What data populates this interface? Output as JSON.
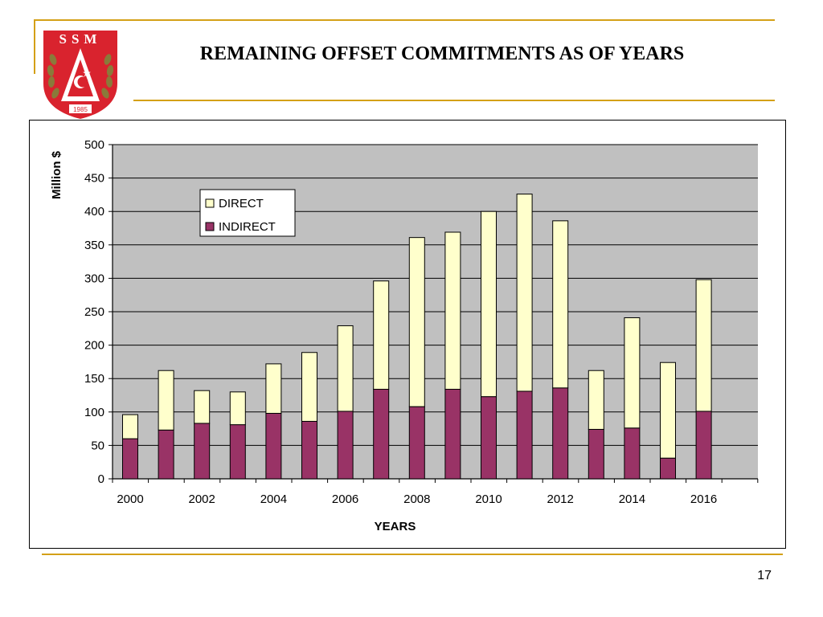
{
  "slide": {
    "title": "REMAINING OFFSET COMMITMENTS AS OF YEARS",
    "page_number": "17"
  },
  "logo": {
    "text": "SSM",
    "year": "1985",
    "colors": {
      "red": "#d9232e",
      "gold": "#8a7a3a",
      "white": "#ffffff"
    }
  },
  "colors": {
    "accent_rule": "#d4a017",
    "plot_background": "#c0c0c0",
    "direct": "#ffffcc",
    "indirect": "#993366"
  },
  "chart_data": {
    "type": "bar",
    "stacked": true,
    "x": [
      2000,
      2001,
      2002,
      2003,
      2004,
      2005,
      2006,
      2007,
      2008,
      2009,
      2010,
      2011,
      2012,
      2013,
      2014,
      2015,
      2016
    ],
    "xtick_labels": [
      "2000",
      "2002",
      "2004",
      "2006",
      "2008",
      "2010",
      "2012",
      "2014",
      "2016"
    ],
    "series": [
      {
        "name": "INDIRECT",
        "color": "#993366",
        "values": [
          60,
          73,
          83,
          81,
          98,
          86,
          101,
          134,
          108,
          134,
          123,
          131,
          136,
          74,
          76,
          31,
          101
        ]
      },
      {
        "name": "DIRECT",
        "color": "#ffffcc",
        "values": [
          36,
          89,
          49,
          49,
          74,
          103,
          128,
          162,
          253,
          235,
          277,
          295,
          250,
          88,
          165,
          143,
          197
        ]
      }
    ],
    "legend_order": [
      "DIRECT",
      "INDIRECT"
    ],
    "xlabel": "YEARS",
    "ylabel": "Million $",
    "ylim": [
      0,
      500
    ],
    "yticks": [
      0,
      50,
      100,
      150,
      200,
      250,
      300,
      350,
      400,
      450,
      500
    ],
    "grid": true,
    "legend_position": "upper-left inside plot"
  }
}
